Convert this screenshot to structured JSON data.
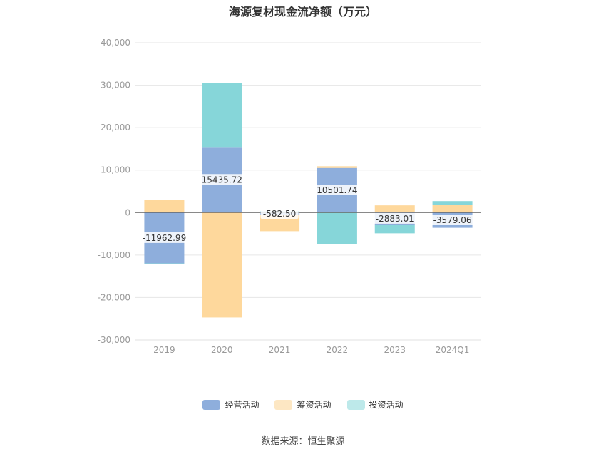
{
  "chart_data": {
    "type": "bar",
    "stacked": true,
    "title": "海源复材现金流净额（万元）",
    "categories": [
      "2019",
      "2020",
      "2021",
      "2022",
      "2023",
      "2024Q1"
    ],
    "ylim": [
      -30000,
      40000
    ],
    "yticks": [
      40000,
      30000,
      20000,
      10000,
      0,
      -10000,
      -20000,
      -30000
    ],
    "ytick_labels": [
      "40,000",
      "30,000",
      "20,000",
      "10,000",
      "0",
      "-10,000",
      "-20,000",
      "-30,000"
    ],
    "grid": true,
    "legend_position": "bottom",
    "series": [
      {
        "name": "经营活动",
        "color": "#8eaedc",
        "values": [
          -11962.99,
          15435.72,
          -582.5,
          10501.74,
          -2883.01,
          -3579.06
        ],
        "labels": [
          "-11962.99",
          "15435.72",
          "-582.50",
          "10501.74",
          "-2883.01",
          "-3579.06"
        ]
      },
      {
        "name": "筹资活动",
        "color": "#fed89c",
        "values": [
          3000,
          -24700,
          -3800,
          400,
          1700,
          1800
        ]
      },
      {
        "name": "投资活动",
        "color": "#86d6d9",
        "values": [
          -200,
          15000,
          300,
          -7500,
          -2000,
          900
        ]
      }
    ]
  },
  "legend": [
    {
      "label": "经营活动",
      "color": "#8eaedc"
    },
    {
      "label": "筹资活动",
      "color": "#fde7c3"
    },
    {
      "label": "投资活动",
      "color": "#bde9ea"
    }
  ],
  "source": "数据来源：恒生聚源"
}
